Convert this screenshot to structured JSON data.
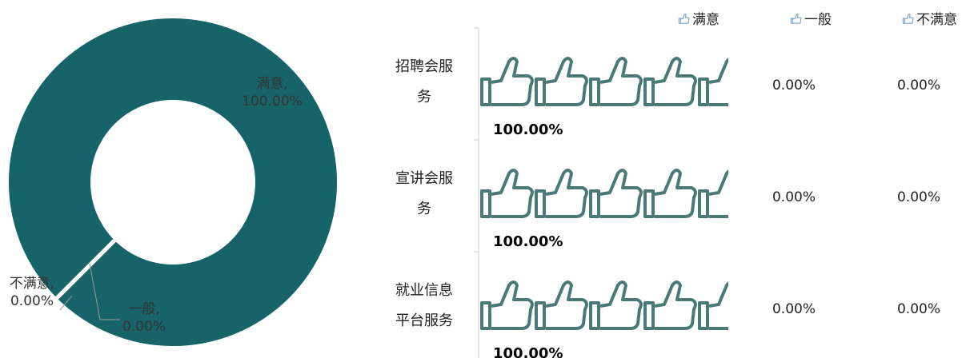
{
  "chart_data": [
    {
      "type": "donut",
      "categories": [
        "满意",
        "一般",
        "不满意"
      ],
      "values": [
        100,
        0,
        0
      ],
      "data_labels": [
        "满意,\n100.00%",
        "一般,\n0.00%",
        "不满意,\n0.00%"
      ],
      "color": "#17636a"
    },
    {
      "type": "pictorial-bar",
      "categories": [
        "招聘会服务",
        "宣讲会服务",
        "就业信息平台服务"
      ],
      "xlim": [
        0,
        100
      ],
      "series": [
        {
          "name": "满意",
          "color": "#4a7a78",
          "values": [
            100,
            100,
            100
          ],
          "value_labels": [
            "100.00%",
            "100.00%",
            "100.00%"
          ]
        },
        {
          "name": "一般",
          "color": "#4a7a78",
          "values": [
            0,
            0,
            0
          ],
          "value_labels": [
            "0.00%",
            "0.00%",
            "0.00%"
          ]
        },
        {
          "name": "不满意",
          "color": "#4a7a78",
          "values": [
            0,
            0,
            0
          ],
          "value_labels": [
            "0.00%",
            "0.00%",
            "0.00%"
          ]
        }
      ]
    }
  ]
}
